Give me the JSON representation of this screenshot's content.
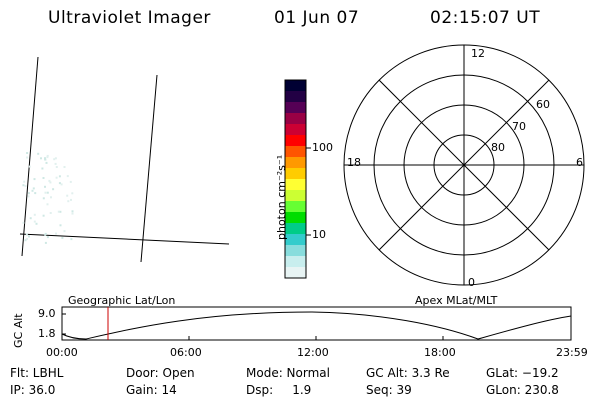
{
  "header": {
    "title": "Ultraviolet Imager",
    "date": "01 Jun 07",
    "time": "02:15:07 UT"
  },
  "colorbar": {
    "unit_label": "photon cm⁻²s⁻¹",
    "tick_100": "100",
    "tick_10": "10",
    "colors": [
      "#000033",
      "#220044",
      "#550055",
      "#990044",
      "#cc0033",
      "#ff0000",
      "#ff5500",
      "#ff9900",
      "#ffcc00",
      "#ffff33",
      "#ccff33",
      "#66ff33",
      "#00dd00",
      "#00cc88",
      "#33cccc",
      "#88dddd",
      "#c8eeee",
      "#e8f4f4"
    ]
  },
  "polar": {
    "labels": {
      "top": "12",
      "bottom": "0",
      "left": "18",
      "right": "6",
      "ring60": "60",
      "ring70": "70",
      "ring80": "80"
    }
  },
  "timeline": {
    "ylabel": "GC Alt",
    "ytick_top": "9.0",
    "ytick_bottom": "1.8",
    "left_label": "Geographic Lat/Lon",
    "right_label": "Apex MLat/MLT",
    "xticks": [
      "00:00",
      "06:00",
      "12:00",
      "18:00",
      "23:59"
    ],
    "marker_color": "#cc0000"
  },
  "info": {
    "flt": "Flt: LBHL",
    "ip": "IP: 36.0",
    "door": "Door: Open",
    "gain": "Gain: 14",
    "mode": "Mode: Normal",
    "dsp": "Dsp:     1.9",
    "gcalt": "GC Alt: 3.3 Re",
    "seq": "Seq: 39",
    "glat": "GLat: −19.2",
    "glon": "GLon: 230.8"
  }
}
